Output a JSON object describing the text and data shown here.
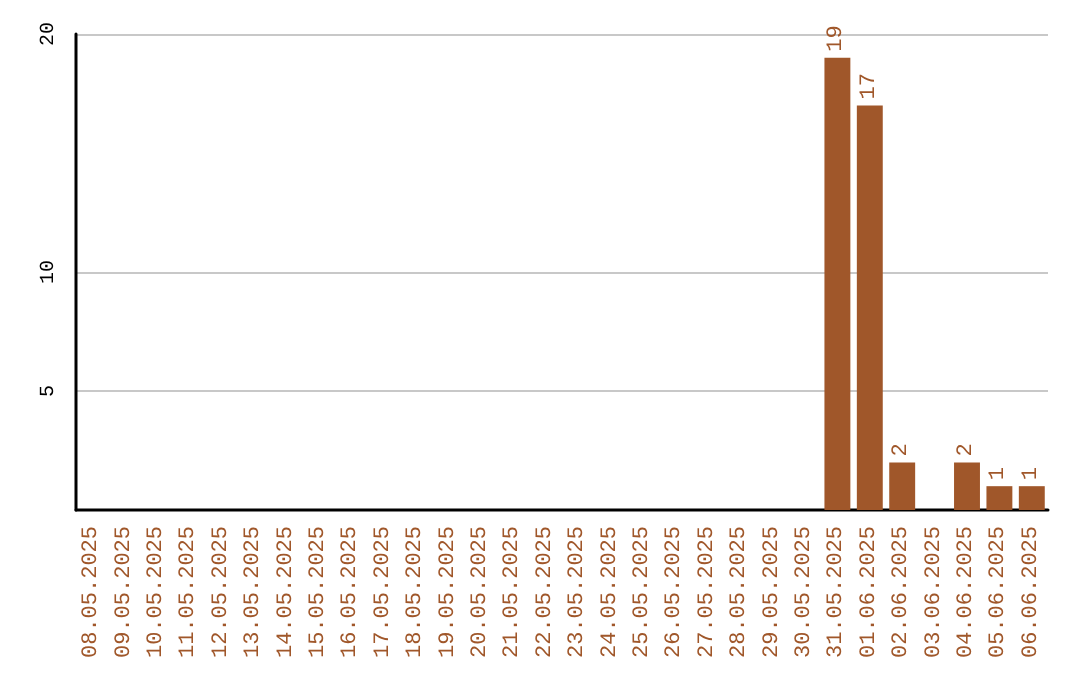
{
  "chart_data": {
    "type": "bar",
    "categories": [
      "08.05.2025",
      "09.05.2025",
      "10.05.2025",
      "11.05.2025",
      "12.05.2025",
      "13.05.2025",
      "14.05.2025",
      "15.05.2025",
      "16.05.2025",
      "17.05.2025",
      "18.05.2025",
      "19.05.2025",
      "20.05.2025",
      "21.05.2025",
      "22.05.2025",
      "23.05.2025",
      "24.05.2025",
      "25.05.2025",
      "26.05.2025",
      "27.05.2025",
      "28.05.2025",
      "29.05.2025",
      "30.05.2025",
      "31.05.2025",
      "01.06.2025",
      "02.06.2025",
      "03.06.2025",
      "04.06.2025",
      "05.06.2025",
      "06.06.2025"
    ],
    "values": [
      0,
      0,
      0,
      0,
      0,
      0,
      0,
      0,
      0,
      0,
      0,
      0,
      0,
      0,
      0,
      0,
      0,
      0,
      0,
      0,
      0,
      0,
      0,
      19,
      17,
      2,
      0,
      2,
      1,
      1
    ],
    "value_labels": [
      null,
      null,
      null,
      null,
      null,
      null,
      null,
      null,
      null,
      null,
      null,
      null,
      null,
      null,
      null,
      null,
      null,
      null,
      null,
      null,
      null,
      null,
      null,
      "19",
      "17",
      "2",
      null,
      "2",
      "1",
      "1"
    ],
    "color": "#a0572a",
    "ylim": [
      0,
      20
    ],
    "yticks": [
      5,
      10,
      20
    ],
    "grid": "y"
  }
}
